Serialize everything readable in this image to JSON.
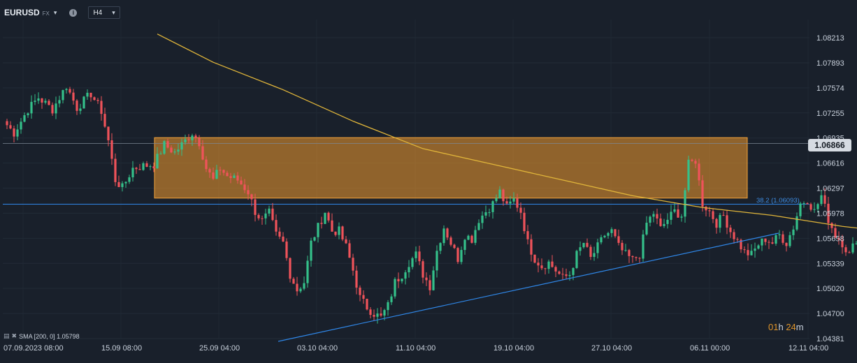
{
  "toolbar": {
    "symbol": "EURUSD",
    "market": "FX",
    "timeframe": "H4",
    "info_glyph": "i",
    "caret_glyph": "▾",
    "symbol_menu_icon": "chevron-down-icon",
    "info_icon": "info-icon"
  },
  "indicator_legend": {
    "text": "SMA [200, 0] 1.05798",
    "settings_icon": "settings-icon",
    "close_icon": "close-icon"
  },
  "countdown": {
    "hours": "01",
    "hours_unit": "h",
    "minutes": "24",
    "minutes_unit": "m"
  },
  "current_price": "1.06866",
  "fib_label": "38.2 (1.06093)",
  "colors": {
    "background": "#19202b",
    "up_candle": "#34c08a",
    "down_candle": "#f0535a",
    "sma_line": "#e0b53a",
    "zone_fill": "#f29a2e",
    "trendline": "#2f87e8",
    "countdown": "#e0952a"
  },
  "chart_data": {
    "type": "candlestick",
    "symbol": "EURUSD",
    "timeframe": "H4",
    "y_ticks": [
      "1.08213",
      "1.07893",
      "1.07574",
      "1.07255",
      "1.06935",
      "1.06616",
      "1.06297",
      "1.05978",
      "1.05658",
      "1.05339",
      "1.05020",
      "1.04700",
      "1.04381"
    ],
    "ylim": [
      1.0438,
      1.0834
    ],
    "x_ticks": [
      "07.09.2023 08:00",
      "15.09 08:00",
      "25.09 04:00",
      "03.10 04:00",
      "11.10 04:00",
      "19.10 04:00",
      "27.10 04:00",
      "06.11 00:00",
      "12.11 04:00"
    ],
    "close_path": [
      [
        0,
        1.0715
      ],
      [
        3,
        1.07
      ],
      [
        7,
        1.073
      ],
      [
        10,
        1.0745
      ],
      [
        14,
        1.073
      ],
      [
        18,
        1.076
      ],
      [
        21,
        1.0732
      ],
      [
        25,
        1.075
      ],
      [
        28,
        1.0728
      ],
      [
        30,
        1.069
      ],
      [
        32,
        1.064
      ],
      [
        34,
        1.063
      ],
      [
        37,
        1.0655
      ],
      [
        40,
        1.0658
      ],
      [
        43,
        1.066
      ],
      [
        46,
        1.0685
      ],
      [
        49,
        1.0675
      ],
      [
        52,
        1.069
      ],
      [
        54,
        1.07
      ],
      [
        56,
        1.0688
      ],
      [
        58,
        1.0655
      ],
      [
        60,
        1.064
      ],
      [
        62,
        1.0655
      ],
      [
        64,
        1.0645
      ],
      [
        67,
        1.064
      ],
      [
        70,
        1.0625
      ],
      [
        72,
        1.06
      ],
      [
        74,
        1.0588
      ],
      [
        76,
        1.0598
      ],
      [
        78,
        1.057
      ],
      [
        80,
        1.056
      ],
      [
        82,
        1.052
      ],
      [
        84,
        1.05
      ],
      [
        86,
        1.051
      ],
      [
        88,
        1.056
      ],
      [
        90,
        1.058
      ],
      [
        92,
        1.06
      ],
      [
        94,
        1.0575
      ],
      [
        96,
        1.0575
      ],
      [
        98,
        1.0555
      ],
      [
        100,
        1.0525
      ],
      [
        102,
        1.049
      ],
      [
        104,
        1.0478
      ],
      [
        106,
        1.047
      ],
      [
        108,
        1.0465
      ],
      [
        110,
        1.048
      ],
      [
        112,
        1.051
      ],
      [
        114,
        1.052
      ],
      [
        116,
        1.0535
      ],
      [
        118,
        1.0545
      ],
      [
        120,
        1.052
      ],
      [
        122,
        1.0505
      ],
      [
        124,
        1.055
      ],
      [
        126,
        1.058
      ],
      [
        128,
        1.056
      ],
      [
        130,
        1.054
      ],
      [
        132,
        1.057
      ],
      [
        134,
        1.0565
      ],
      [
        136,
        1.059
      ],
      [
        138,
        1.06
      ],
      [
        140,
        1.061
      ],
      [
        142,
        1.0625
      ],
      [
        144,
        1.0605
      ],
      [
        146,
        1.0615
      ],
      [
        148,
        1.06
      ],
      [
        150,
        1.056
      ],
      [
        152,
        1.054
      ],
      [
        154,
        1.053
      ],
      [
        156,
        1.0535
      ],
      [
        158,
        1.0525
      ],
      [
        160,
        1.0515
      ],
      [
        162,
        1.052
      ],
      [
        164,
        1.0545
      ],
      [
        166,
        1.056
      ],
      [
        168,
        1.054
      ],
      [
        170,
        1.0555
      ],
      [
        172,
        1.057
      ],
      [
        174,
        1.0575
      ],
      [
        176,
        1.0555
      ],
      [
        178,
        1.0545
      ],
      [
        180,
        1.0538
      ],
      [
        182,
        1.0545
      ],
      [
        184,
        1.0585
      ],
      [
        186,
        1.0598
      ],
      [
        188,
        1.0578
      ],
      [
        190,
        1.059
      ],
      [
        192,
        1.06
      ],
      [
        194,
        1.0595
      ],
      [
        196,
        1.066
      ],
      [
        198,
        1.0665
      ],
      [
        200,
        1.061
      ],
      [
        202,
        1.06
      ],
      [
        204,
        1.0585
      ],
      [
        206,
        1.0595
      ],
      [
        208,
        1.0575
      ],
      [
        210,
        1.0562
      ],
      [
        212,
        1.0548
      ],
      [
        214,
        1.0545
      ],
      [
        216,
        1.0558
      ],
      [
        218,
        1.0565
      ],
      [
        220,
        1.056
      ],
      [
        222,
        1.057
      ],
      [
        224,
        1.056
      ],
      [
        226,
        1.058
      ],
      [
        228,
        1.061
      ],
      [
        230,
        1.0615
      ],
      [
        232,
        1.06
      ],
      [
        234,
        1.062
      ],
      [
        236,
        1.059
      ],
      [
        238,
        1.057
      ],
      [
        240,
        1.056
      ],
      [
        242,
        1.0545
      ],
      [
        244,
        1.0565
      ],
      [
        246,
        1.06
      ],
      [
        248,
        1.062
      ],
      [
        250,
        1.064
      ],
      [
        252,
        1.0625
      ],
      [
        254,
        1.063
      ],
      [
        256,
        1.065
      ],
      [
        258,
        1.072
      ],
      [
        260,
        1.0735
      ],
      [
        262,
        1.0728
      ],
      [
        264,
        1.074
      ],
      [
        266,
        1.0745
      ],
      [
        268,
        1.0725
      ],
      [
        270,
        1.071
      ],
      [
        272,
        1.0695
      ],
      [
        274,
        1.0675
      ],
      [
        276,
        1.069
      ],
      [
        278,
        1.0685
      ],
      [
        279,
        1.0687
      ]
    ],
    "sma": {
      "name": "SMA [200, 0]",
      "last_value": 1.05798,
      "values": [
        [
          44,
          1.0826
        ],
        [
          60,
          1.079
        ],
        [
          80,
          1.0755
        ],
        [
          100,
          1.0715
        ],
        [
          120,
          1.068
        ],
        [
          140,
          1.066
        ],
        [
          160,
          1.064
        ],
        [
          180,
          1.062
        ],
        [
          200,
          1.0605
        ],
        [
          220,
          1.0595
        ],
        [
          230,
          1.0588
        ],
        [
          240,
          1.0581
        ],
        [
          250,
          1.0576
        ],
        [
          258,
          1.058
        ],
        [
          268,
          1.05798
        ]
      ]
    },
    "resistance_zone": {
      "top": 1.0694,
      "bottom": 1.0617
    },
    "fib_level": {
      "label": "38.2",
      "value": 1.06093
    },
    "trendline": {
      "from": [
        98,
        1.0438
      ],
      "to": [
        272,
        1.0575
      ]
    }
  }
}
